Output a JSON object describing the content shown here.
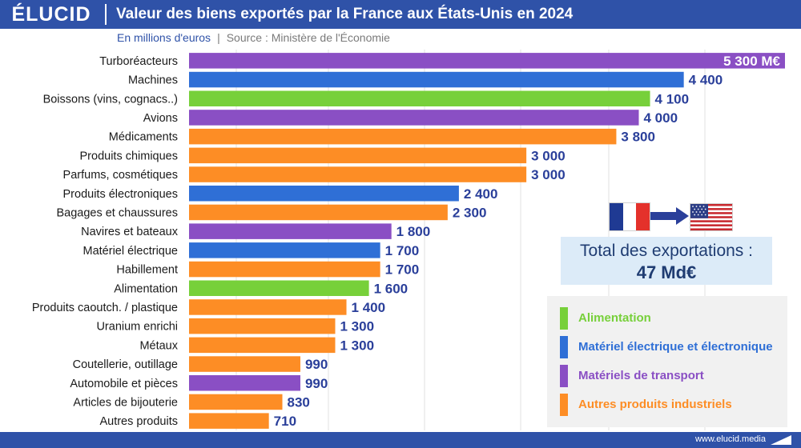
{
  "header": {
    "logo": "ÉLUCID",
    "title": "Valeur des biens exportés par la France aux États-Unis en 2024"
  },
  "subtitle": {
    "unit": "En millions d'euros",
    "separator": "|",
    "source": "Source : Ministère de l'Économie"
  },
  "colors": {
    "header_bg": "#2f52a8",
    "alimentation": "#77d03a",
    "electrique": "#2f6fd6",
    "transport": "#8a4fc4",
    "autres": "#fd8d25",
    "value_text": "#2a3f9a"
  },
  "chart_data": {
    "type": "bar",
    "orientation": "horizontal",
    "title": "Valeur des biens exportés par la France aux États-Unis en 2024",
    "unit": "En millions d'euros",
    "categories": [
      "Turboréacteurs",
      "Machines",
      "Boissons (vins, cognacs..)",
      "Avions",
      "Médicaments",
      "Produits chimiques",
      "Parfums, cosmétiques",
      "Produits électroniques",
      "Bagages et chaussures",
      "Navires et bateaux",
      "Matériel électrique",
      "Habillement",
      "Alimentation",
      "Produits caoutch. / plastique",
      "Uranium enrichi",
      "Métaux",
      "Coutellerie, outillage",
      "Automobile et pièces",
      "Articles de bijouterie",
      "Autres produits"
    ],
    "values": [
      5300,
      4400,
      4100,
      4000,
      3800,
      3000,
      3000,
      2400,
      2300,
      1800,
      1700,
      1700,
      1600,
      1400,
      1300,
      1300,
      990,
      990,
      830,
      710
    ],
    "value_labels": [
      "5 300 M€",
      "4 400",
      "4 100",
      "4 000",
      "3 800",
      "3 000",
      "3 000",
      "2 400",
      "2 300",
      "1 800",
      "1 700",
      "1 700",
      "1 600",
      "1 400",
      "1 300",
      "1 300",
      "990",
      "990",
      "830",
      "710"
    ],
    "groups": [
      "transport",
      "electrique",
      "alimentation",
      "transport",
      "autres",
      "autres",
      "autres",
      "electrique",
      "autres",
      "transport",
      "electrique",
      "autres",
      "alimentation",
      "autres",
      "autres",
      "autres",
      "autres",
      "transport",
      "autres",
      "autres"
    ],
    "xlim": [
      0,
      5300
    ],
    "grid": true
  },
  "flags": {
    "from": "flag-france-icon",
    "arrow": "arrow-right-icon",
    "to": "flag-usa-icon"
  },
  "total": {
    "label": "Total des exportations :",
    "value": "47 Md€"
  },
  "legend": {
    "items": [
      {
        "key": "alimentation",
        "label": "Alimentation"
      },
      {
        "key": "electrique",
        "label": "Matériel électrique et électronique"
      },
      {
        "key": "transport",
        "label": "Matériels de transport"
      },
      {
        "key": "autres",
        "label": "Autres produits industriels"
      }
    ]
  },
  "footer": {
    "url": "www.elucid.media"
  }
}
